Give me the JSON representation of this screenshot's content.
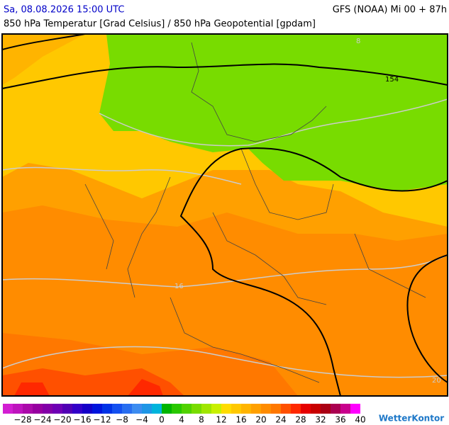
{
  "header": {
    "datetime": "Sa, 08.08.2026 15:00 UTC",
    "model": "GFS (NOAA) Mi 00 + 87h",
    "subtitle": "850 hPa Temperatur [Grad Celsius] / 850 hPa Geopotential [gpdam]"
  },
  "map": {
    "labels": [
      "8",
      "154",
      "16",
      "20"
    ]
  },
  "legend": {
    "labels": [
      "−28",
      "−24",
      "−20",
      "−16",
      "−12",
      "−8",
      "−4",
      "0",
      "4",
      "8",
      "12",
      "16",
      "20",
      "24",
      "28",
      "32",
      "36",
      "40"
    ],
    "colors": [
      "#d21ed2",
      "#be14be",
      "#aa0aaa",
      "#9600a0",
      "#8200a8",
      "#6e00b4",
      "#5000b4",
      "#3200c8",
      "#1400c8",
      "#0014dc",
      "#0032e6",
      "#1450f0",
      "#286ef0",
      "#3c8cf0",
      "#1e96e6",
      "#00b4dc",
      "#00b400",
      "#28c800",
      "#50d200",
      "#78dc00",
      "#a0e600",
      "#c8f000",
      "#ffdc00",
      "#ffc800",
      "#ffb400",
      "#ffa000",
      "#ff8c00",
      "#ff7800",
      "#ff5000",
      "#ff2800",
      "#e60000",
      "#c80000",
      "#aa0014",
      "#aa0050",
      "#c8008c",
      "#ff00ff"
    ]
  },
  "brand": "WetterKontor"
}
